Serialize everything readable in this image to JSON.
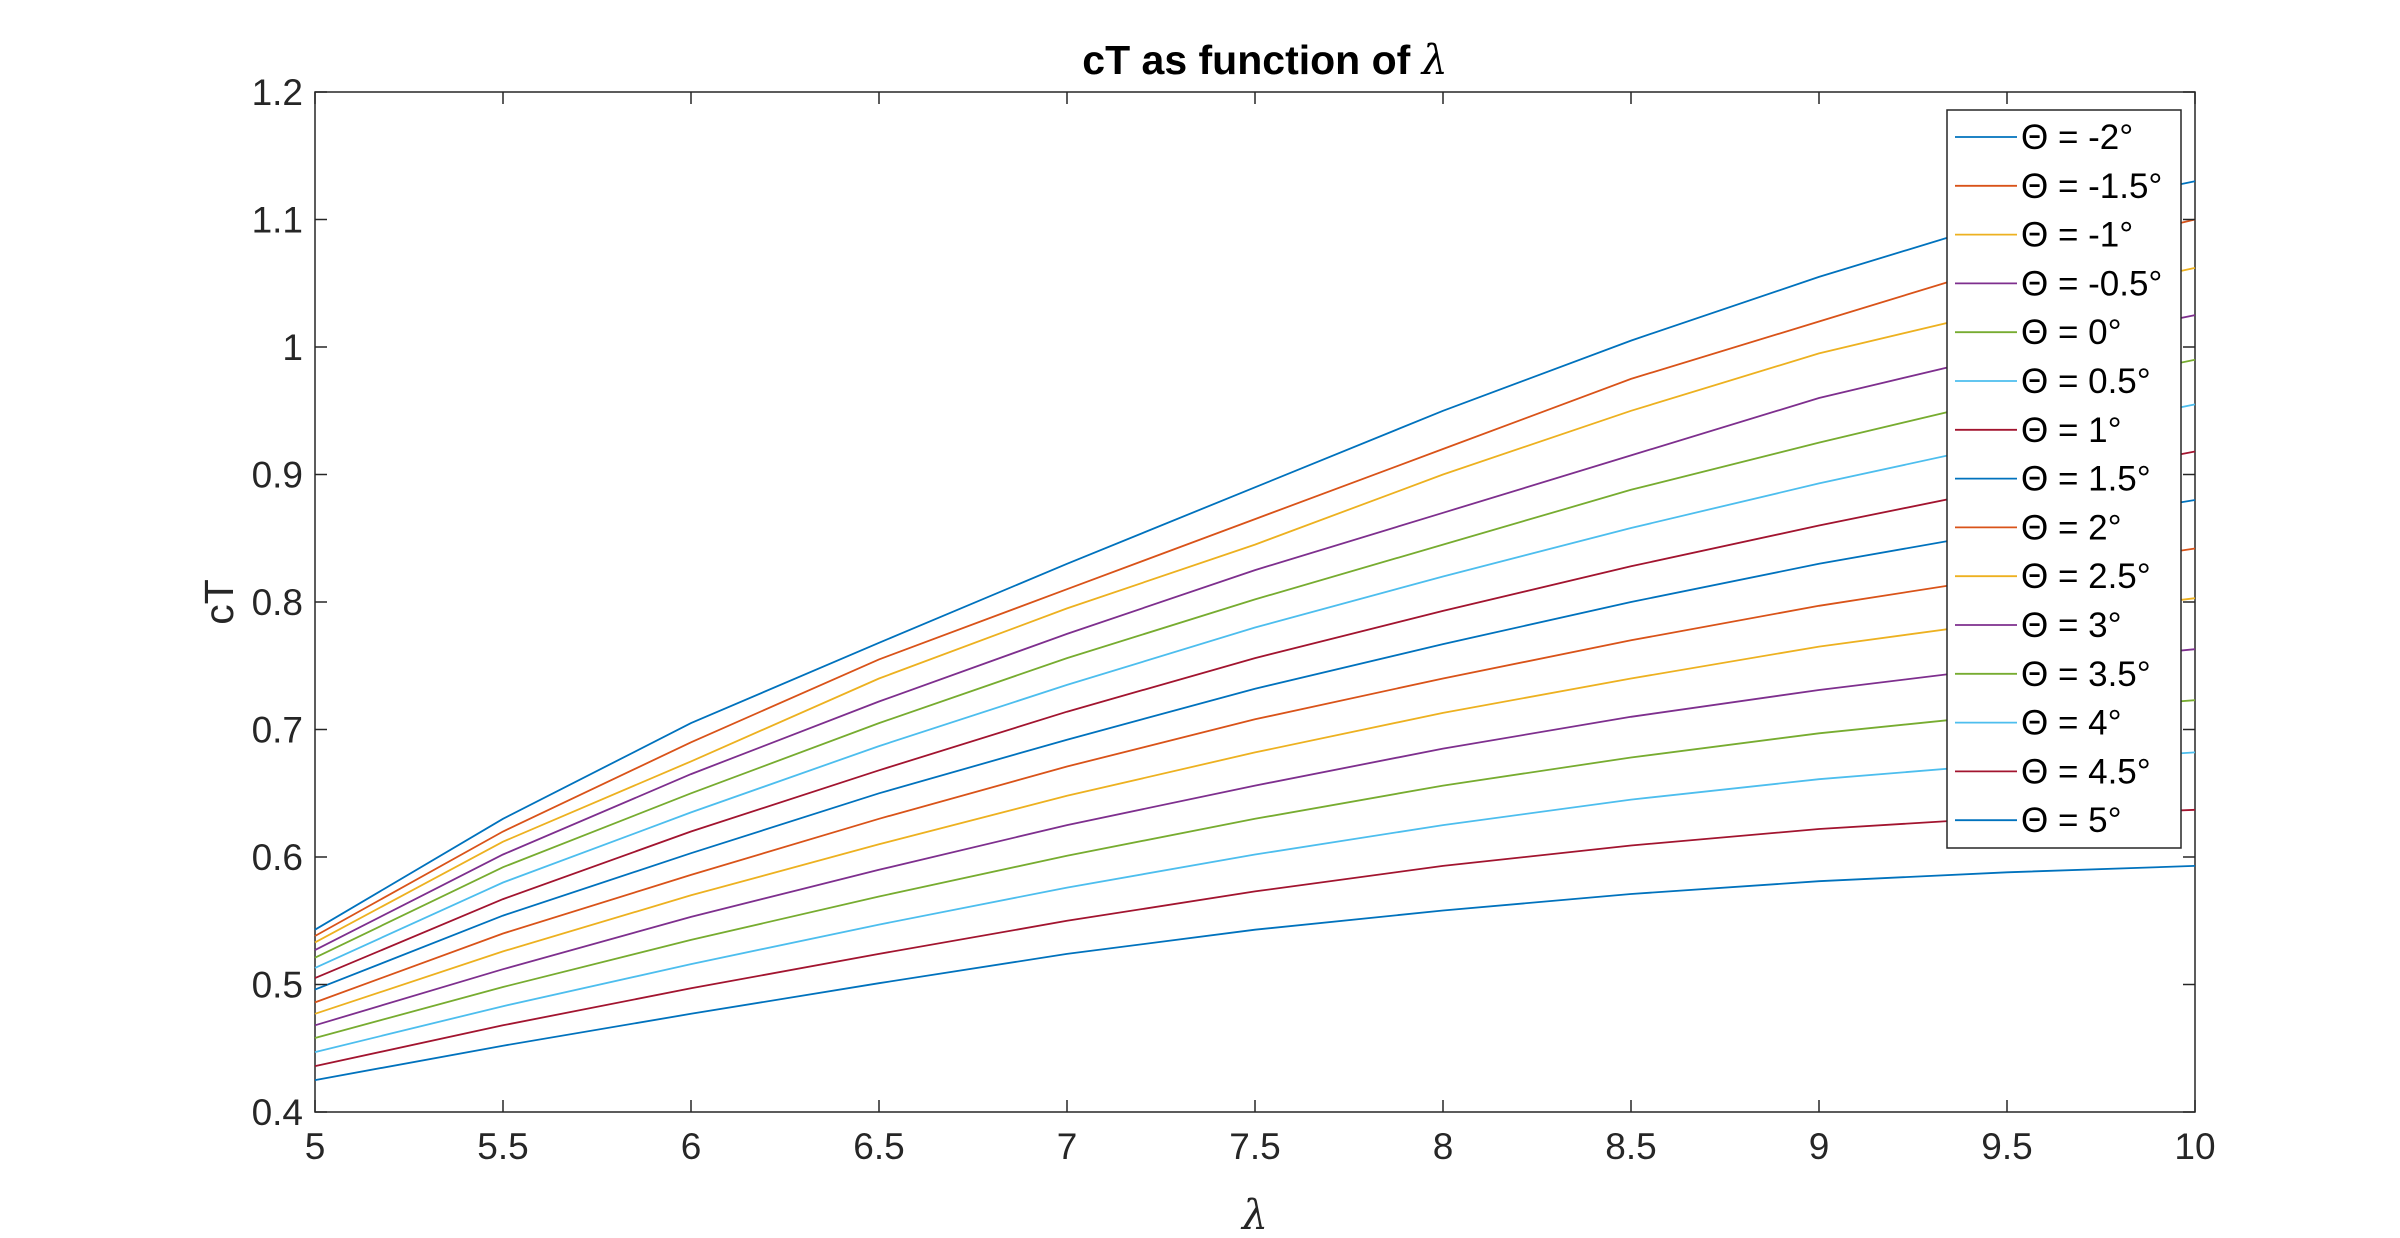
{
  "chart_data": {
    "type": "line",
    "title": "cT as function of",
    "title_symbol": "λ",
    "xlabel": "λ",
    "ylabel": "cT",
    "xlim": [
      5,
      10
    ],
    "ylim": [
      0.4,
      1.2
    ],
    "grid": false,
    "legend_position": "top-right",
    "x_ticks": [
      "5",
      "5.5",
      "6",
      "6.5",
      "7",
      "7.5",
      "8",
      "8.5",
      "9",
      "9.5",
      "10"
    ],
    "y_ticks": [
      "0.4",
      "0.5",
      "0.6",
      "0.7",
      "0.8",
      "0.9",
      "1",
      "1.1",
      "1.2"
    ],
    "x": [
      5,
      5.5,
      6,
      6.5,
      7,
      7.5,
      8,
      8.5,
      9,
      9.5,
      10
    ],
    "series": [
      {
        "name": "Θ = -2°",
        "color": "#0072BD",
        "values": [
          0.543,
          0.63,
          0.705,
          0.768,
          0.83,
          0.89,
          0.95,
          1.005,
          1.055,
          1.1,
          1.13
        ]
      },
      {
        "name": "Θ = -1.5°",
        "color": "#D95319",
        "values": [
          0.538,
          0.62,
          0.69,
          0.755,
          0.81,
          0.865,
          0.92,
          0.975,
          1.02,
          1.065,
          1.1
        ]
      },
      {
        "name": "Θ = -1°",
        "color": "#EDB120",
        "values": [
          0.533,
          0.612,
          0.675,
          0.74,
          0.795,
          0.845,
          0.9,
          0.95,
          0.995,
          1.03,
          1.062
        ]
      },
      {
        "name": "Θ = -0.5°",
        "color": "#7E2F8E",
        "values": [
          0.527,
          0.602,
          0.665,
          0.722,
          0.775,
          0.825,
          0.87,
          0.915,
          0.96,
          0.995,
          1.025
        ]
      },
      {
        "name": "Θ = 0°",
        "color": "#77AC30",
        "values": [
          0.521,
          0.592,
          0.65,
          0.705,
          0.756,
          0.802,
          0.845,
          0.888,
          0.925,
          0.96,
          0.99
        ]
      },
      {
        "name": "Θ = 0.5°",
        "color": "#4DBEEE",
        "values": [
          0.513,
          0.58,
          0.635,
          0.687,
          0.735,
          0.78,
          0.82,
          0.858,
          0.893,
          0.925,
          0.955
        ]
      },
      {
        "name": "Θ = 1°",
        "color": "#A2142F",
        "values": [
          0.505,
          0.567,
          0.62,
          0.668,
          0.714,
          0.756,
          0.793,
          0.828,
          0.86,
          0.89,
          0.918
        ]
      },
      {
        "name": "Θ = 1.5°",
        "color": "#0072BD",
        "values": [
          0.496,
          0.554,
          0.603,
          0.65,
          0.692,
          0.732,
          0.767,
          0.8,
          0.83,
          0.856,
          0.88
        ]
      },
      {
        "name": "Θ = 2°",
        "color": "#D95319",
        "values": [
          0.486,
          0.54,
          0.586,
          0.63,
          0.671,
          0.708,
          0.74,
          0.77,
          0.797,
          0.82,
          0.842
        ]
      },
      {
        "name": "Θ = 2.5°",
        "color": "#EDB120",
        "values": [
          0.477,
          0.526,
          0.57,
          0.61,
          0.648,
          0.682,
          0.713,
          0.74,
          0.765,
          0.785,
          0.803
        ]
      },
      {
        "name": "Θ = 3°",
        "color": "#7E2F8E",
        "values": [
          0.468,
          0.512,
          0.553,
          0.59,
          0.625,
          0.656,
          0.685,
          0.71,
          0.731,
          0.749,
          0.763
        ]
      },
      {
        "name": "Θ = 3.5°",
        "color": "#77AC30",
        "values": [
          0.458,
          0.498,
          0.535,
          0.569,
          0.601,
          0.63,
          0.656,
          0.678,
          0.697,
          0.712,
          0.723
        ]
      },
      {
        "name": "Θ = 4°",
        "color": "#4DBEEE",
        "values": [
          0.447,
          0.483,
          0.516,
          0.547,
          0.576,
          0.602,
          0.625,
          0.645,
          0.661,
          0.673,
          0.682
        ]
      },
      {
        "name": "Θ = 4.5°",
        "color": "#A2142F",
        "values": [
          0.436,
          0.468,
          0.497,
          0.524,
          0.55,
          0.573,
          0.593,
          0.609,
          0.622,
          0.631,
          0.637
        ]
      },
      {
        "name": "Θ = 5°",
        "color": "#0072BD",
        "values": [
          0.425,
          0.452,
          0.477,
          0.501,
          0.524,
          0.543,
          0.558,
          0.571,
          0.581,
          0.588,
          0.593
        ]
      }
    ]
  }
}
